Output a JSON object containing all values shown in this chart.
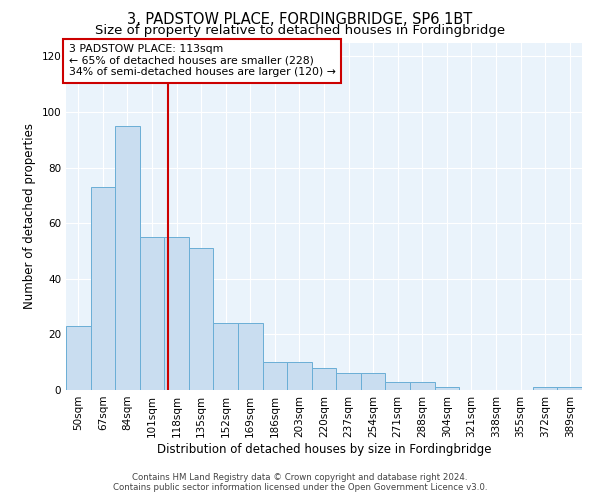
{
  "title": "3, PADSTOW PLACE, FORDINGBRIDGE, SP6 1BT",
  "subtitle": "Size of property relative to detached houses in Fordingbridge",
  "xlabel": "Distribution of detached houses by size in Fordingbridge",
  "ylabel": "Number of detached properties",
  "footnote1": "Contains HM Land Registry data © Crown copyright and database right 2024.",
  "footnote2": "Contains public sector information licensed under the Open Government Licence v3.0.",
  "categories": [
    "50sqm",
    "67sqm",
    "84sqm",
    "101sqm",
    "118sqm",
    "135sqm",
    "152sqm",
    "169sqm",
    "186sqm",
    "203sqm",
    "220sqm",
    "237sqm",
    "254sqm",
    "271sqm",
    "288sqm",
    "304sqm",
    "321sqm",
    "338sqm",
    "355sqm",
    "372sqm",
    "389sqm"
  ],
  "values": [
    23,
    73,
    95,
    55,
    55,
    51,
    24,
    24,
    10,
    10,
    8,
    6,
    6,
    3,
    3,
    1,
    0,
    0,
    0,
    1,
    1
  ],
  "bar_color": "#c9ddf0",
  "bar_edge_color": "#6aaed6",
  "vline_x": 3.65,
  "vline_color": "#cc0000",
  "annotation_text": "3 PADSTOW PLACE: 113sqm\n← 65% of detached houses are smaller (228)\n34% of semi-detached houses are larger (120) →",
  "annotation_box_color": "white",
  "annotation_box_edge_color": "#cc0000",
  "ylim": [
    0,
    125
  ],
  "yticks": [
    0,
    20,
    40,
    60,
    80,
    100,
    120
  ],
  "background_color": "#eaf3fb",
  "title_fontsize": 10.5,
  "subtitle_fontsize": 9.5,
  "xlabel_fontsize": 8.5,
  "ylabel_fontsize": 8.5,
  "tick_fontsize": 7.5,
  "annot_fontsize": 7.8,
  "footnote_fontsize": 6.2
}
